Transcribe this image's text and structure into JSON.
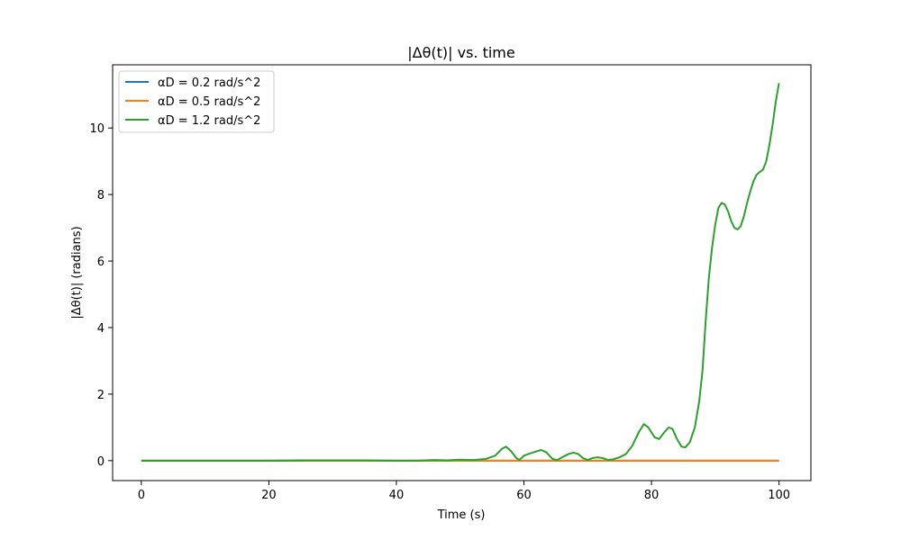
{
  "chart_data": {
    "type": "line",
    "title": "|Δθ(t)| vs. time",
    "xlabel": "Time (s)",
    "ylabel": "|Δθ(t)| (radians)",
    "xlim": [
      -4.5,
      105
    ],
    "ylim": [
      -0.6,
      11.9
    ],
    "x_ticks": [
      0,
      20,
      40,
      60,
      80,
      100
    ],
    "y_ticks": [
      0,
      2,
      4,
      6,
      8,
      10
    ],
    "grid": false,
    "legend_position": "upper-left",
    "series": [
      {
        "name": "αD = 0.2 rad/s^2",
        "color": "#1f77b4",
        "points": [
          [
            0,
            0
          ],
          [
            100,
            0
          ]
        ]
      },
      {
        "name": "αD = 0.5 rad/s^2",
        "color": "#ff7f0e",
        "points": [
          [
            0,
            0
          ],
          [
            100,
            0
          ]
        ]
      },
      {
        "name": "αD = 1.2 rad/s^2",
        "color": "#2ca02c",
        "points": [
          [
            0,
            0
          ],
          [
            20,
            0
          ],
          [
            25,
            0.01
          ],
          [
            30,
            0.01
          ],
          [
            35,
            0.01
          ],
          [
            40,
            0.0
          ],
          [
            43,
            0.0
          ],
          [
            46,
            0.02
          ],
          [
            48,
            0.01
          ],
          [
            50,
            0.03
          ],
          [
            52,
            0.02
          ],
          [
            54,
            0.05
          ],
          [
            55.5,
            0.15
          ],
          [
            56.5,
            0.35
          ],
          [
            57.2,
            0.42
          ],
          [
            58,
            0.28
          ],
          [
            58.8,
            0.08
          ],
          [
            59.3,
            0.02
          ],
          [
            60,
            0.15
          ],
          [
            61,
            0.22
          ],
          [
            62,
            0.28
          ],
          [
            62.7,
            0.32
          ],
          [
            63.5,
            0.25
          ],
          [
            64.5,
            0.05
          ],
          [
            65.2,
            0.02
          ],
          [
            66,
            0.1
          ],
          [
            67,
            0.2
          ],
          [
            67.8,
            0.24
          ],
          [
            68.5,
            0.2
          ],
          [
            69.3,
            0.07
          ],
          [
            70,
            0.02
          ],
          [
            70.8,
            0.08
          ],
          [
            71.5,
            0.1
          ],
          [
            72.3,
            0.08
          ],
          [
            73.2,
            0.02
          ],
          [
            74,
            0.04
          ],
          [
            75,
            0.1
          ],
          [
            76,
            0.2
          ],
          [
            77,
            0.45
          ],
          [
            78,
            0.85
          ],
          [
            78.8,
            1.1
          ],
          [
            79.5,
            1.0
          ],
          [
            80.5,
            0.7
          ],
          [
            81.2,
            0.65
          ],
          [
            82,
            0.85
          ],
          [
            82.7,
            1.0
          ],
          [
            83.3,
            0.95
          ],
          [
            84,
            0.65
          ],
          [
            84.7,
            0.42
          ],
          [
            85.3,
            0.4
          ],
          [
            86,
            0.55
          ],
          [
            86.8,
            1.0
          ],
          [
            87.5,
            1.8
          ],
          [
            88,
            2.7
          ],
          [
            88.5,
            4.2
          ],
          [
            89,
            5.5
          ],
          [
            89.5,
            6.4
          ],
          [
            90,
            7.1
          ],
          [
            90.5,
            7.6
          ],
          [
            91,
            7.75
          ],
          [
            91.5,
            7.7
          ],
          [
            92,
            7.5
          ],
          [
            92.5,
            7.2
          ],
          [
            93,
            7.0
          ],
          [
            93.5,
            6.95
          ],
          [
            94,
            7.05
          ],
          [
            94.5,
            7.35
          ],
          [
            95,
            7.75
          ],
          [
            95.5,
            8.1
          ],
          [
            96,
            8.4
          ],
          [
            96.5,
            8.6
          ],
          [
            97,
            8.68
          ],
          [
            97.5,
            8.75
          ],
          [
            98,
            9.0
          ],
          [
            98.5,
            9.5
          ],
          [
            99,
            10.1
          ],
          [
            99.5,
            10.8
          ],
          [
            100,
            11.35
          ]
        ]
      }
    ]
  }
}
